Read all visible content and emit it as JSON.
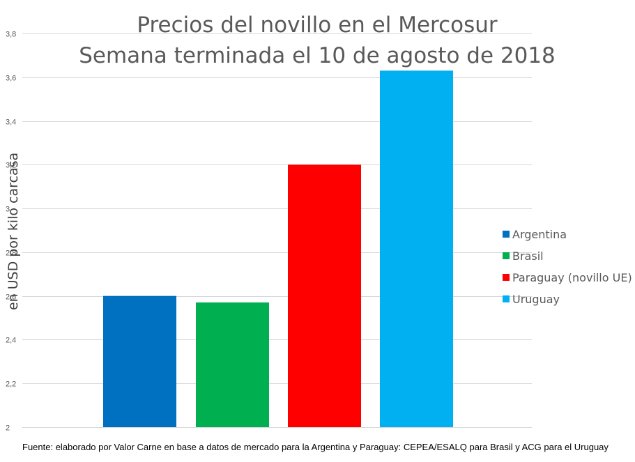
{
  "chart_data": {
    "type": "bar",
    "title_line1": "Precios del novillo en el Mercosur",
    "title_line2": "Semana terminada el 10 de agosto de 2018",
    "ylabel": "en USD por kilo carcasa",
    "xlabel": "",
    "ylim": [
      2,
      3.8
    ],
    "yticks": [
      2,
      2.2,
      2.4,
      2.6,
      2.8,
      3,
      3.2,
      3.4,
      3.6,
      3.8
    ],
    "ytick_labels": [
      "2",
      "2,2",
      "2,4",
      "2,6",
      "2,8",
      "3",
      "3,2",
      "3,4",
      "3,6",
      "3,8"
    ],
    "grid": true,
    "legend_position": "right",
    "series": [
      {
        "name": "Argentina",
        "value": 2.6,
        "color": "#0070c0"
      },
      {
        "name": "Brasil",
        "value": 2.57,
        "color": "#00b050"
      },
      {
        "name": "Paraguay (novillo UE)",
        "value": 3.2,
        "color": "#ff0000"
      },
      {
        "name": "Uruguay",
        "value": 3.63,
        "color": "#00b0f0"
      }
    ],
    "source": "Fuente: elaborado por Valor Carne en base a datos de mercado para la Argentina y Paraguay: CEPEA/ESALQ para Brasil y ACG para el Uruguay"
  }
}
